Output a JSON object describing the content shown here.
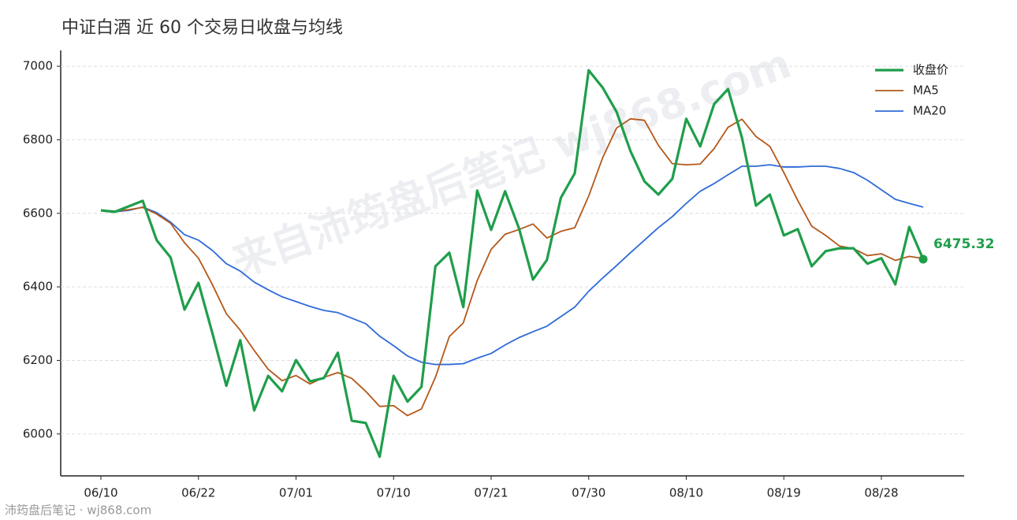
{
  "chart_data": {
    "type": "line",
    "title": "中证白酒 近 60 个交易日收盘与均线",
    "watermark": "来自沛筠盘后笔记 wj868.com",
    "footer": "沛筠盘后笔记 · wj868.com",
    "categories": [
      "06/10",
      null,
      null,
      null,
      null,
      null,
      null,
      "06/22",
      null,
      null,
      null,
      null,
      null,
      null,
      "07/01",
      null,
      null,
      null,
      null,
      null,
      null,
      "07/10",
      null,
      null,
      null,
      null,
      null,
      null,
      "07/21",
      null,
      null,
      null,
      null,
      null,
      null,
      "07/30",
      null,
      null,
      null,
      null,
      null,
      null,
      "08/10",
      null,
      null,
      null,
      null,
      null,
      null,
      "08/19",
      null,
      null,
      null,
      null,
      null,
      null,
      "08/28",
      null,
      null,
      null
    ],
    "series": [
      {
        "name": "收盘价",
        "color": "#1f9e4a",
        "values": [
          6608,
          6604,
          6619,
          6634,
          6527,
          6480,
          6338,
          6411,
          6274,
          6131,
          6255,
          6064,
          6158,
          6116,
          6201,
          6143,
          6152,
          6221,
          6036,
          6030,
          5938,
          6158,
          6088,
          6128,
          6456,
          6493,
          6345,
          6662,
          6555,
          6660,
          6559,
          6420,
          6473,
          6642,
          6709,
          6989,
          6942,
          6876,
          6769,
          6687,
          6651,
          6694,
          6857,
          6782,
          6897,
          6938,
          6805,
          6621,
          6651,
          6540,
          6557,
          6456,
          6497,
          6505,
          6505,
          6463,
          6478,
          6407,
          6563,
          6475.32
        ]
      },
      {
        "name": "MA5",
        "color": "#b5581a",
        "values": [
          6608,
          6606,
          6610,
          6616,
          6598,
          6573,
          6520,
          6478,
          6406,
          6327,
          6282,
          6227,
          6176,
          6145,
          6159,
          6136,
          6154,
          6167,
          6151,
          6116,
          6075,
          6077,
          6050,
          6068,
          6154,
          6265,
          6302,
          6417,
          6502,
          6543,
          6556,
          6571,
          6533,
          6551,
          6561,
          6647,
          6751,
          6832,
          6857,
          6853,
          6785,
          6735,
          6732,
          6734,
          6776,
          6834,
          6856,
          6809,
          6782,
          6711,
          6635,
          6565,
          6540,
          6511,
          6504,
          6485,
          6490,
          6472,
          6483,
          6477
        ]
      },
      {
        "name": "MA20",
        "color": "#2f6bd8",
        "values": [
          6608,
          6604,
          6608,
          6617,
          6602,
          6576,
          6542,
          6527,
          6499,
          6463,
          6443,
          6413,
          6392,
          6373,
          6360,
          6347,
          6336,
          6330,
          6315,
          6300,
          6266,
          6240,
          6212,
          6195,
          6189,
          6189,
          6191,
          6206,
          6219,
          6242,
          6262,
          6278,
          6293,
          6319,
          6345,
          6388,
          6424,
          6458,
          6493,
          6527,
          6561,
          6591,
          6627,
          6660,
          6681,
          6705,
          6728,
          6728,
          6732,
          6726,
          6726,
          6728,
          6728,
          6722,
          6711,
          6690,
          6664,
          6638,
          6627,
          6617
        ]
      }
    ],
    "ylim": [
      5886,
      7043
    ],
    "yticks": [
      6000,
      6200,
      6400,
      6600,
      6800,
      7000
    ],
    "grid": true,
    "legend": "upper right"
  }
}
